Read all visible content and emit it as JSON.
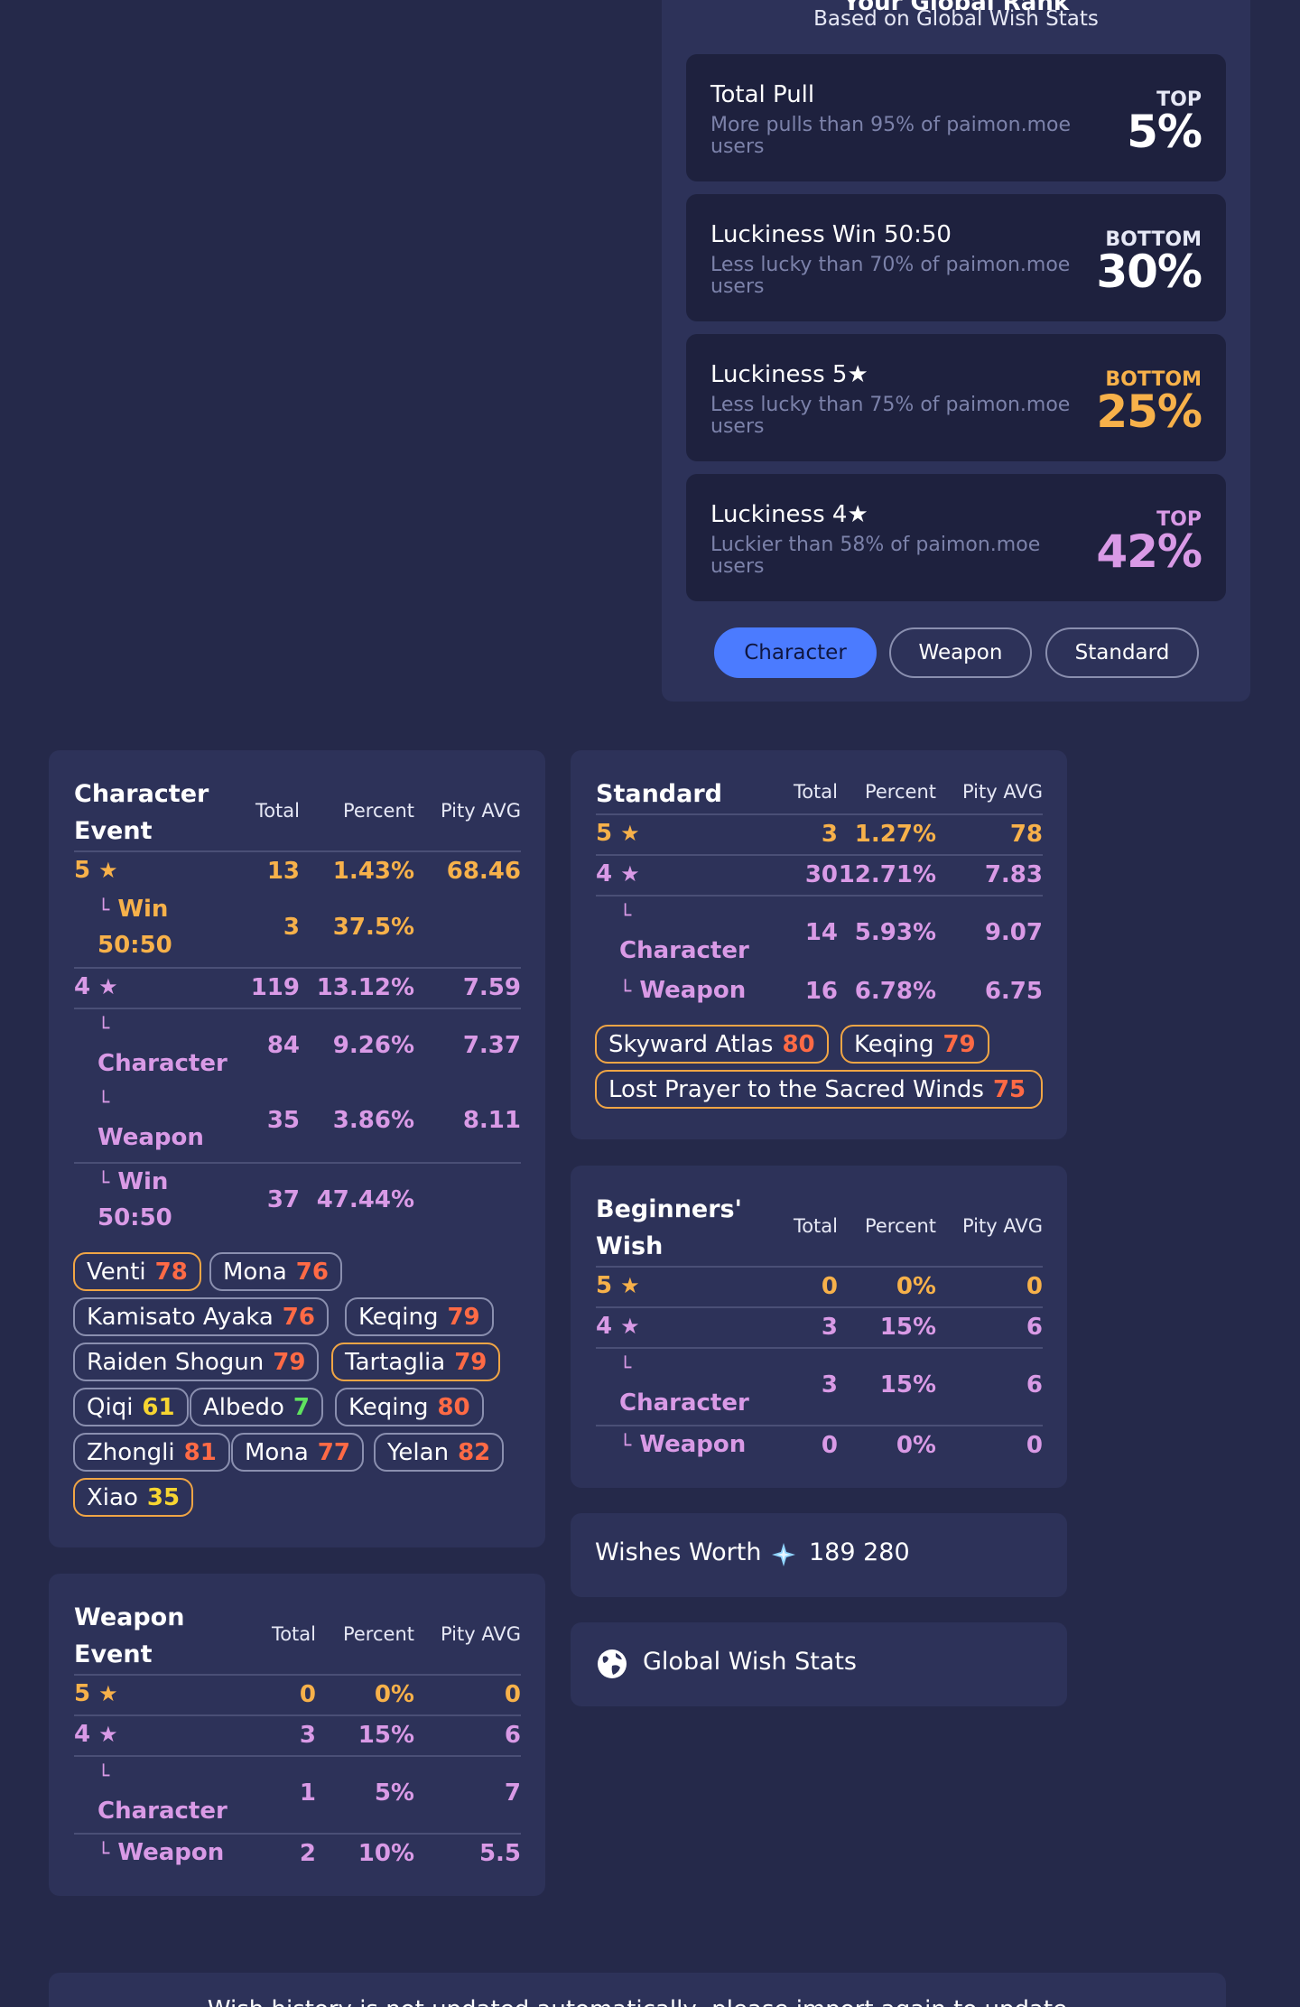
{
  "rank": {
    "title": "Your Global Rank",
    "subtitle": "Based on Global Wish Stats",
    "cards": [
      {
        "title": "Total Pull",
        "desc": "More pulls than 95% of paimon.moe users",
        "pos": "TOP",
        "value": "5%",
        "color": "#ffffff",
        "pos_color": "#e6e8f5"
      },
      {
        "title": "Luckiness Win 50:50",
        "desc": "Less lucky than 70% of paimon.moe users",
        "pos": "BOTTOM",
        "value": "30%",
        "color": "#ffffff",
        "pos_color": "#e6e8f5"
      },
      {
        "title": "Luckiness 5★",
        "desc": "Less lucky than 75% of paimon.moe users",
        "pos": "BOTTOM",
        "value": "25%",
        "color": "#f7b14a",
        "pos_color": "#f7b14a"
      },
      {
        "title": "Luckiness 4★",
        "desc": "Luckier than 58% of paimon.moe users",
        "pos": "TOP",
        "value": "42%",
        "color": "#d99ae6",
        "pos_color": "#d99ae6"
      }
    ],
    "tabs": [
      "Character",
      "Weapon",
      "Standard"
    ],
    "active_tab": "Character"
  },
  "headers": {
    "total": "Total",
    "percent": "Percent",
    "pity": "Pity AVG"
  },
  "star_glyph": "★",
  "corner_glyph": "└",
  "character_event": {
    "title_line1": "Character",
    "title_line2": "Event",
    "rows": [
      {
        "label": "5",
        "star": true,
        "total": "13",
        "percent": "1.43%",
        "pity": "68.46"
      },
      {
        "label1": "Win",
        "label2": "50:50",
        "total": "3",
        "percent": "37.5%",
        "pity": ""
      },
      {
        "label": "4",
        "star": true,
        "total": "119",
        "percent": "13.12%",
        "pity": "7.59"
      },
      {
        "label": "Character",
        "total": "84",
        "percent": "9.26%",
        "pity": "7.37"
      },
      {
        "label": "Weapon",
        "total": "35",
        "percent": "3.86%",
        "pity": "8.11"
      },
      {
        "label1": "Win",
        "label2": "50:50",
        "total": "37",
        "percent": "47.44%",
        "pity": ""
      }
    ],
    "tags": [
      {
        "name": "Venti",
        "value": "78",
        "gold": true,
        "vcolor": "red"
      },
      {
        "name": "Mona",
        "value": "76",
        "gold": false,
        "vcolor": "red"
      },
      {
        "name": "Kamisato Ayaka",
        "value": "76",
        "gold": false,
        "vcolor": "red"
      },
      {
        "name": "Keqing",
        "value": "79",
        "gold": false,
        "vcolor": "red"
      },
      {
        "name": "Raiden Shogun",
        "value": "79",
        "gold": false,
        "vcolor": "red"
      },
      {
        "name": "Tartaglia",
        "value": "79",
        "gold": true,
        "vcolor": "red"
      },
      {
        "name": "Qiqi",
        "value": "61",
        "gold": false,
        "vcolor": "yel"
      },
      {
        "name": "Albedo",
        "value": "7",
        "gold": false,
        "vcolor": "grn"
      },
      {
        "name": "Keqing",
        "value": "80",
        "gold": false,
        "vcolor": "red"
      },
      {
        "name": "Zhongli",
        "value": "81",
        "gold": false,
        "vcolor": "red"
      },
      {
        "name": "Mona",
        "value": "77",
        "gold": false,
        "vcolor": "red"
      },
      {
        "name": "Yelan",
        "value": "82",
        "gold": false,
        "vcolor": "red"
      },
      {
        "name": "Xiao",
        "value": "35",
        "gold": true,
        "vcolor": "yel"
      }
    ]
  },
  "weapon_event": {
    "title_line1": "Weapon",
    "title_line2": "Event",
    "rows": [
      {
        "label": "5",
        "star": true,
        "total": "0",
        "percent": "0%",
        "pity": "0"
      },
      {
        "label": "4",
        "star": true,
        "total": "3",
        "percent": "15%",
        "pity": "6"
      },
      {
        "label": "Character",
        "total": "1",
        "percent": "5%",
        "pity": "7"
      },
      {
        "label": "Weapon",
        "total": "2",
        "percent": "10%",
        "pity": "5.5"
      }
    ]
  },
  "standard": {
    "title": "Standard",
    "rows": [
      {
        "label": "5",
        "star": true,
        "total": "3",
        "percent": "1.27%",
        "pity": "78"
      },
      {
        "label": "4",
        "star": true,
        "total": "30",
        "percent": "12.71%",
        "pity": "7.83"
      },
      {
        "label": "Character",
        "total": "14",
        "percent": "5.93%",
        "pity": "9.07"
      },
      {
        "label": "Weapon",
        "total": "16",
        "percent": "6.78%",
        "pity": "6.75"
      }
    ],
    "tags": [
      {
        "name": "Skyward Atlas",
        "value": "80",
        "gold": true
      },
      {
        "name": "Keqing",
        "value": "79",
        "gold": true
      },
      {
        "name": "Lost Prayer to the Sacred Winds",
        "value": "75",
        "gold": true
      }
    ]
  },
  "beginners": {
    "title_line1": "Beginners'",
    "title_line2": "Wish",
    "rows": [
      {
        "label": "5",
        "star": true,
        "total": "0",
        "percent": "0%",
        "pity": "0"
      },
      {
        "label": "4",
        "star": true,
        "total": "3",
        "percent": "15%",
        "pity": "6"
      },
      {
        "label": "Character",
        "total": "3",
        "percent": "15%",
        "pity": "6"
      },
      {
        "label": "Weapon",
        "total": "0",
        "percent": "0%",
        "pity": "0"
      }
    ]
  },
  "wishes_worth": {
    "label": "Wishes Worth",
    "value": "189 280"
  },
  "global_stats": {
    "label": "Global Wish Stats"
  },
  "footer_text": "Wish history is not updated automatically, please import again to update"
}
